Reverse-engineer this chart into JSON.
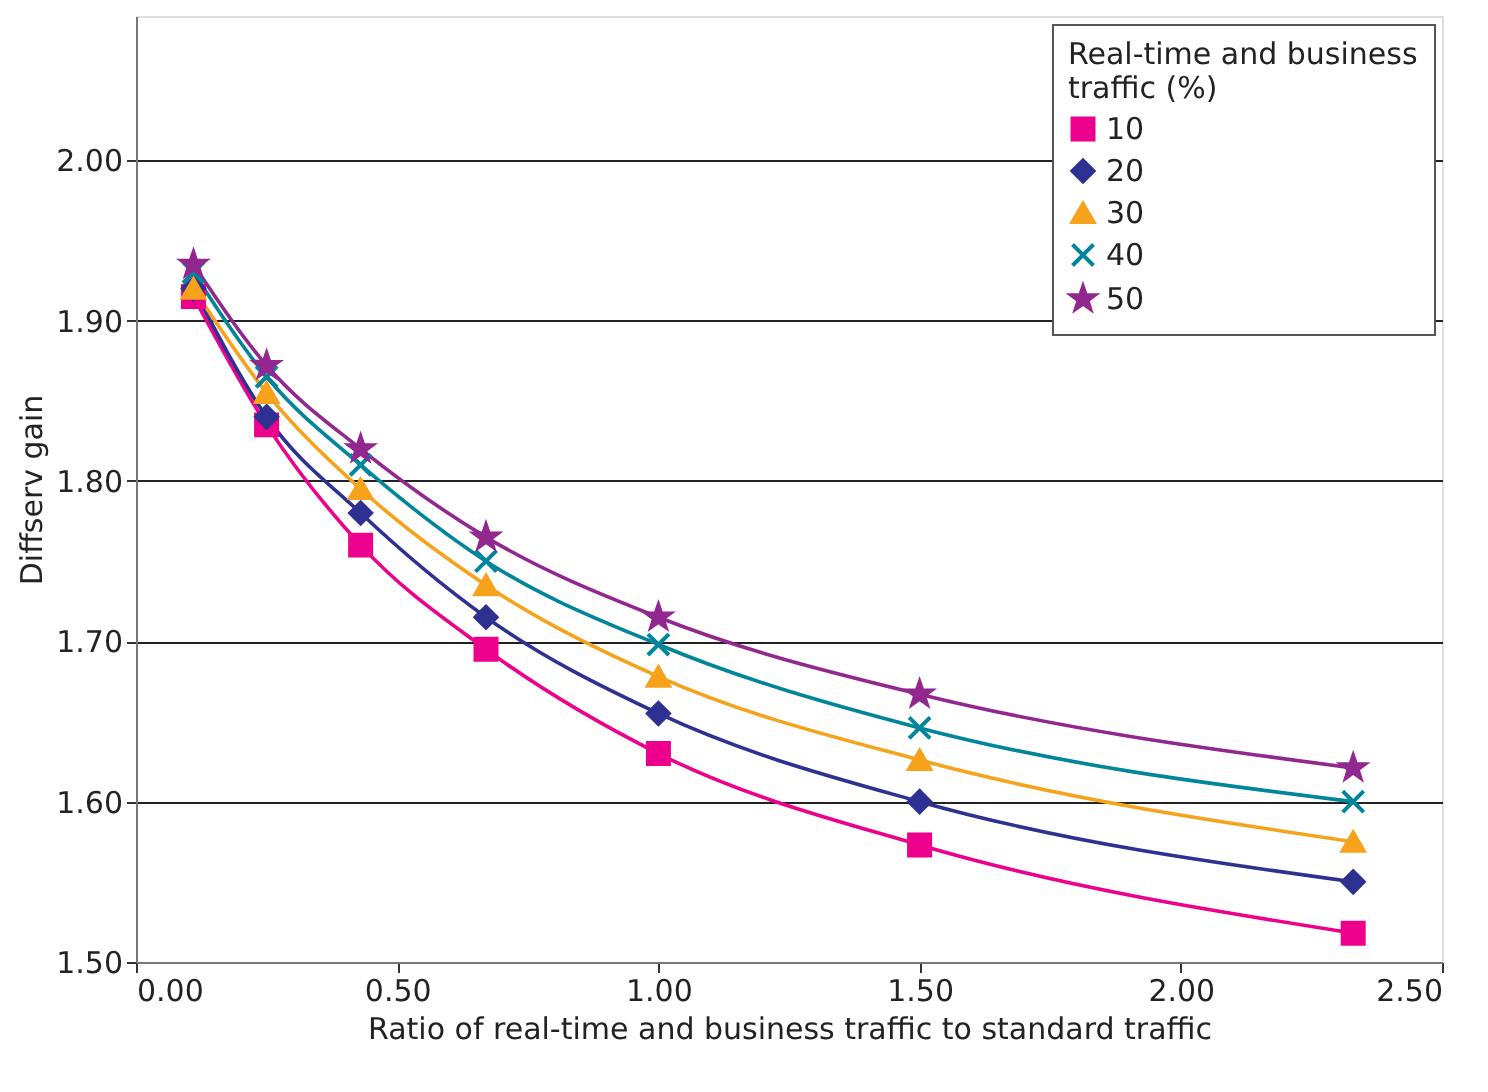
{
  "chart_data": {
    "type": "line",
    "xlabel": "Ratio of real-time and business traffic to standard traffic",
    "ylabel": "Diffserv gain",
    "legend_title": "Real-time and business traffic (%)",
    "legend": "top right",
    "grid": "y",
    "line_style": "solid",
    "x": [
      0.11,
      0.25,
      0.43,
      0.67,
      1.0,
      1.5,
      2.33
    ],
    "xlim": [
      0,
      2.5
    ],
    "xticks": [
      {
        "value": 0,
        "label": "0.00"
      },
      {
        "value": 0.5,
        "label": "0.50"
      },
      {
        "value": 1,
        "label": "1.00"
      },
      {
        "value": 1.5,
        "label": "1.50"
      },
      {
        "value": 2,
        "label": "2.00"
      },
      {
        "value": 2.5,
        "label": "2.50"
      }
    ],
    "ylim": [
      1.5,
      2.09
    ],
    "yticks": [
      {
        "value": 1.5,
        "label": "1.50"
      },
      {
        "value": 1.6,
        "label": "1.60"
      },
      {
        "value": 1.7,
        "label": "1.70"
      },
      {
        "value": 1.8,
        "label": "1.80"
      },
      {
        "value": 1.9,
        "label": "1.90"
      },
      {
        "value": 2.0,
        "label": "2.00"
      }
    ],
    "series": [
      {
        "name": "10",
        "color": "#ec008c",
        "marker": "square",
        "values": [
          1.915,
          1.835,
          1.76,
          1.695,
          1.63,
          1.573,
          1.518
        ]
      },
      {
        "name": "20",
        "color": "#2e3192",
        "marker": "diamond",
        "values": [
          1.92,
          1.84,
          1.78,
          1.715,
          1.655,
          1.6,
          1.55
        ]
      },
      {
        "name": "30",
        "color": "#f7a21b",
        "marker": "triangle",
        "values": [
          1.92,
          1.855,
          1.795,
          1.735,
          1.678,
          1.626,
          1.575
        ]
      },
      {
        "name": "40",
        "color": "#00859b",
        "marker": "cross",
        "values": [
          1.93,
          1.865,
          1.81,
          1.75,
          1.698,
          1.646,
          1.6
        ]
      },
      {
        "name": "50",
        "color": "#92278f",
        "marker": "star",
        "values": [
          1.935,
          1.872,
          1.82,
          1.765,
          1.715,
          1.667,
          1.621
        ]
      }
    ]
  }
}
